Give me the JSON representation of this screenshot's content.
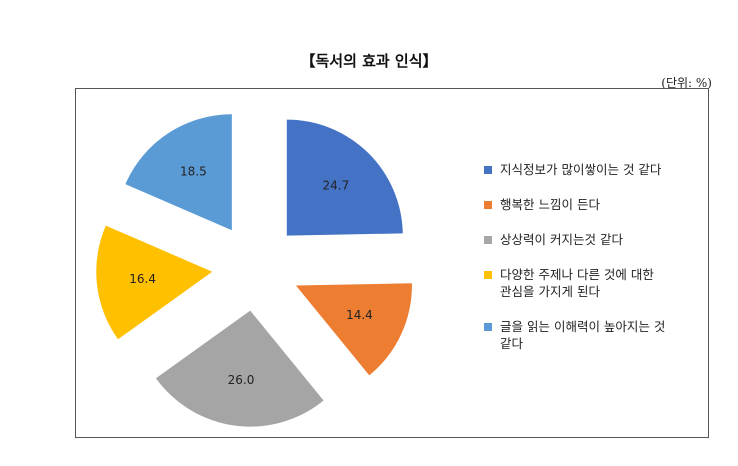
{
  "title": "【독서의 효과 인식】",
  "unit": "(단위: %)",
  "chart_data": {
    "type": "pie",
    "exploded": true,
    "legend_position": "right",
    "slices": [
      {
        "label": "지식정보가 많이쌓이는 것 같다",
        "value": 24.7,
        "value_label": "24.7",
        "color": "#4472C4"
      },
      {
        "label": "행복한 느낌이 든다",
        "value": 14.4,
        "value_label": "14.4",
        "color": "#ED7D31"
      },
      {
        "label": "상상력이 커지는것 같다",
        "value": 26.0,
        "value_label": "26.0",
        "color": "#A5A5A5"
      },
      {
        "label": "다양한 주제나 다른 것에 대한\n관심을 가지게 된다",
        "value": 16.4,
        "value_label": "16.4",
        "color": "#FFC000"
      },
      {
        "label": "글을 읽는 이해력이 높아지는 것\n같다",
        "value": 18.5,
        "value_label": "18.5",
        "color": "#5B9BD5"
      }
    ]
  }
}
